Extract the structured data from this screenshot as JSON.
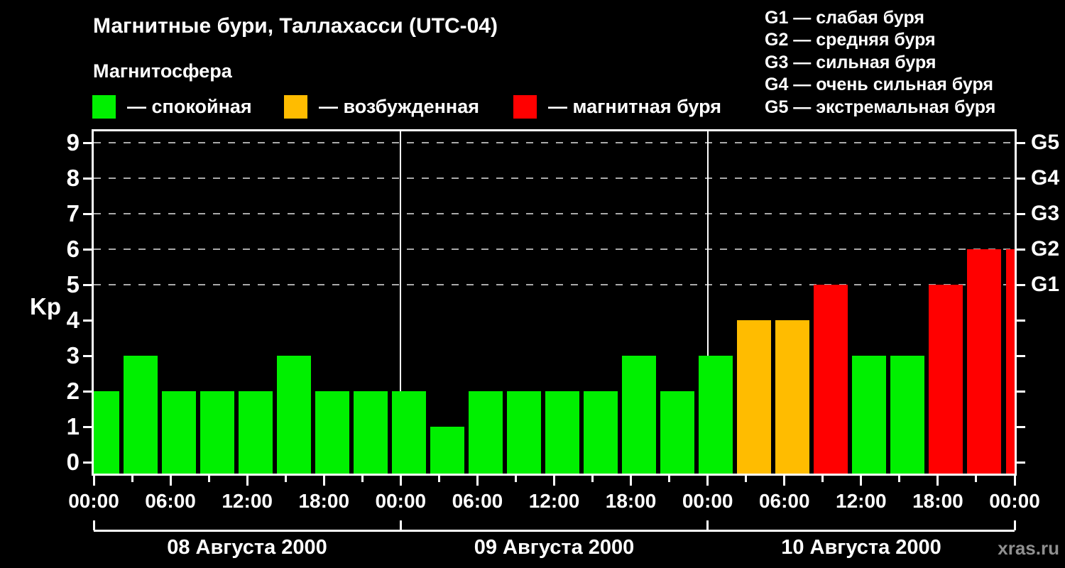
{
  "header": {
    "title": "Магнитные бури, Таллахасси (UTC-04)",
    "subtitle": "Магнитосфера"
  },
  "legend": {
    "items": [
      {
        "name": "quiet",
        "label": "— спокойная",
        "color": "#00f000"
      },
      {
        "name": "excited",
        "label": "— возбужденная",
        "color": "#ffbc00"
      },
      {
        "name": "storm",
        "label": "— магнитная буря",
        "color": "#ff0000"
      }
    ]
  },
  "storm_scale": {
    "lines": [
      "G1 — слабая буря",
      "G2 — средняя буря",
      "G3 — сильная буря",
      "G4 — очень сильная буря",
      "G5 — экстремальная буря"
    ]
  },
  "watermark": "xras.ru",
  "chart_data": {
    "type": "bar",
    "title": "Магнитные бури, Таллахасси (UTC-04)",
    "ylabel": "Kp",
    "ylim": [
      0,
      9
    ],
    "y_ticks": [
      0,
      1,
      2,
      3,
      4,
      5,
      6,
      7,
      8,
      9
    ],
    "grid": "dashed horizontal gray lines at Kp 5,6,7,8,9",
    "interval_hours": 3,
    "x_tick_labels": [
      "00:00",
      "06:00",
      "12:00",
      "18:00",
      "00:00",
      "06:00",
      "12:00",
      "18:00",
      "00:00",
      "06:00",
      "12:00",
      "18:00",
      "00:00"
    ],
    "right_axis": {
      "labels": [
        "G1",
        "G2",
        "G3",
        "G4",
        "G5"
      ],
      "kp_values": [
        5,
        6,
        7,
        8,
        9
      ]
    },
    "days": [
      {
        "date": "08 Августа 2000",
        "values": [
          2,
          3,
          2,
          2,
          2,
          3,
          2,
          2
        ]
      },
      {
        "date": "09 Августа 2000",
        "values": [
          2,
          1,
          2,
          2,
          2,
          2,
          3,
          2
        ]
      },
      {
        "date": "10 Августа 2000",
        "values": [
          3,
          4,
          4,
          5,
          3,
          3,
          5,
          6
        ]
      }
    ],
    "partial_next_bar_value": 6,
    "color_rules": {
      "green_max_kp": 3,
      "orange_kp": 4,
      "red_min_kp": 5
    },
    "colors": {
      "quiet": "#00f000",
      "excited": "#ffbc00",
      "storm": "#ff0000",
      "axis": "#ffffff",
      "grid": "#aaaaaa",
      "background": "#000000"
    }
  }
}
